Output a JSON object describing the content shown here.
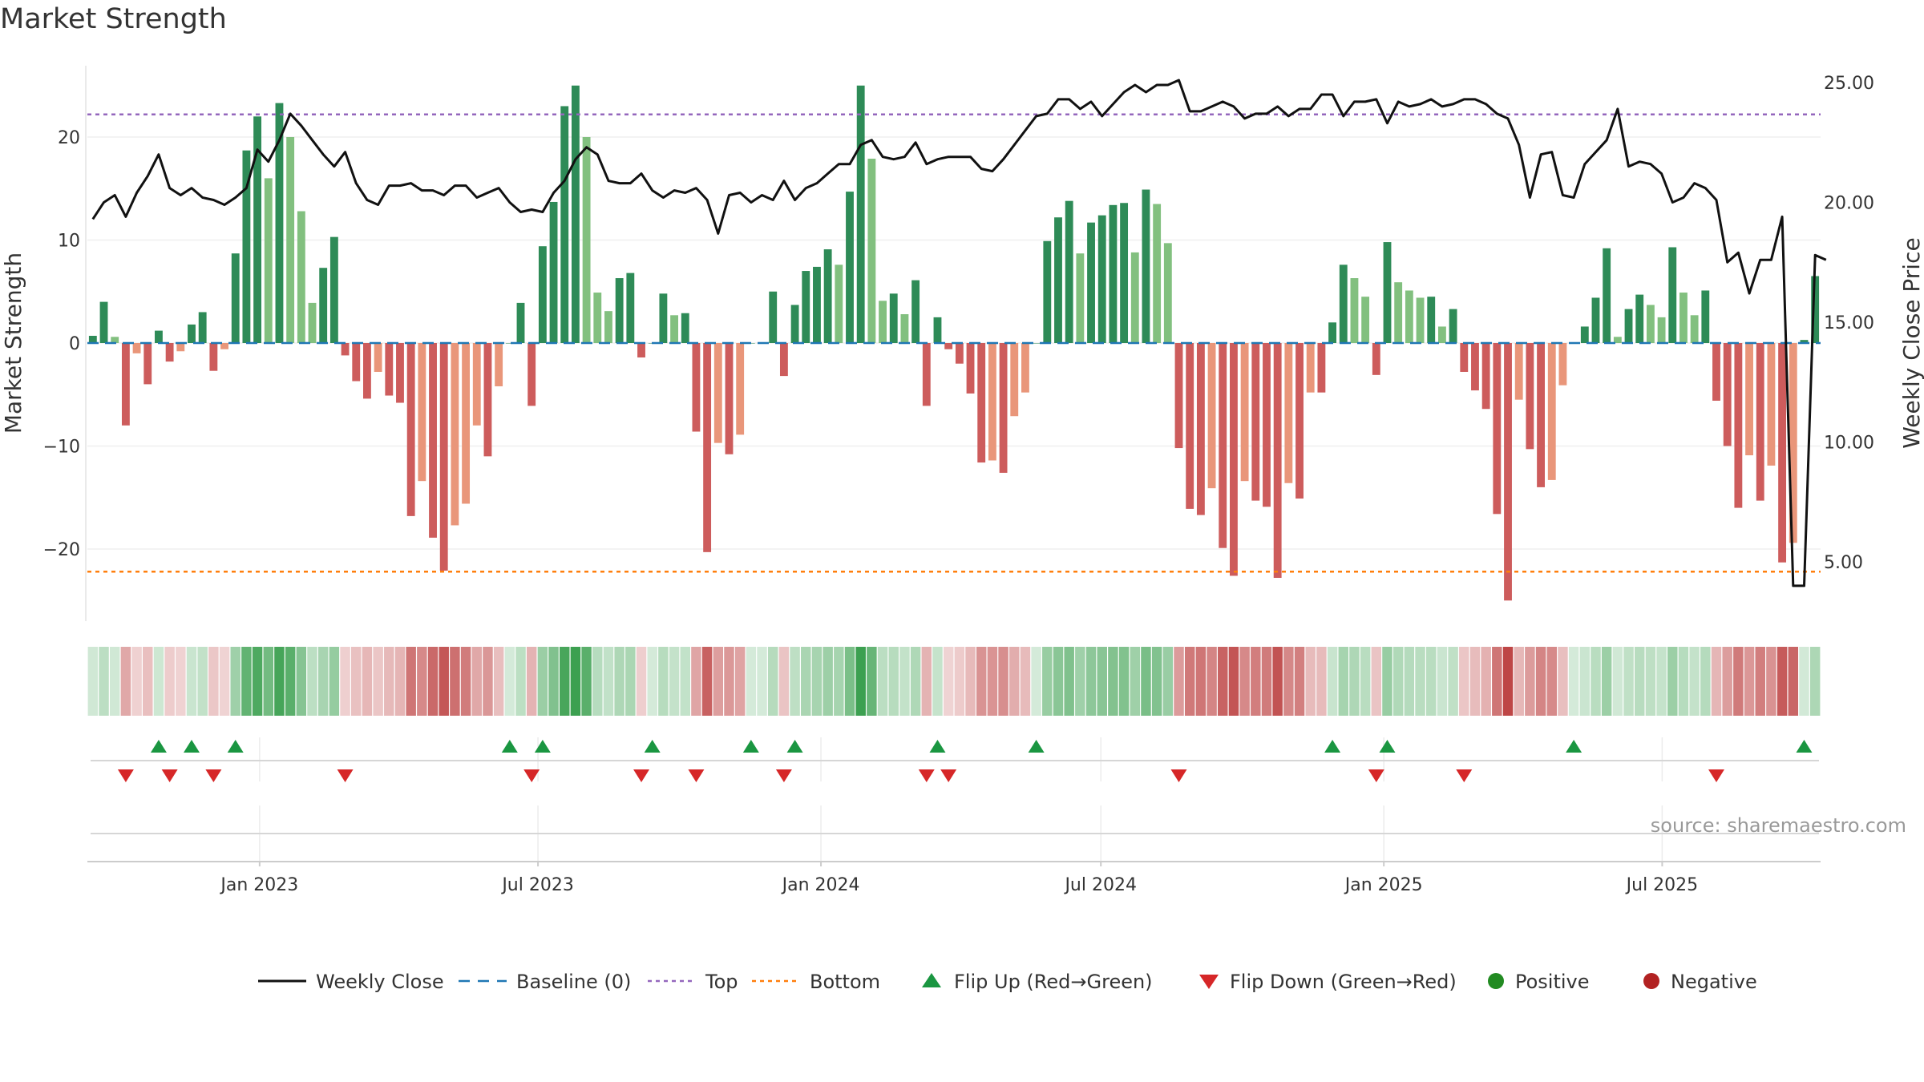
{
  "page": {
    "title": "Market Strength"
  },
  "colors": {
    "strong_pos": "#2e8b57",
    "weak_pos": "#82c07f",
    "strong_neg": "#cd5c5c",
    "weak_neg": "#e9967a",
    "close_line": "#111111",
    "baseline": "#1f77b4",
    "top_line": "#9467bd",
    "bottom_line": "#ff7f0e",
    "flip_up": "#1a9641",
    "flip_down": "#d62728",
    "positive_dot": "#228b22",
    "negative_dot": "#b22222"
  },
  "source": "source: sharemaestro.com",
  "legend": [
    {
      "key": "weekly_close",
      "label": "Weekly Close"
    },
    {
      "key": "baseline",
      "label": "Baseline (0)"
    },
    {
      "key": "top",
      "label": "Top"
    },
    {
      "key": "bottom",
      "label": "Bottom"
    },
    {
      "key": "flip_up",
      "label": "Flip Up (Red→Green)"
    },
    {
      "key": "flip_down",
      "label": "Flip Down (Green→Red)"
    },
    {
      "key": "positive",
      "label": "Positive"
    },
    {
      "key": "negative",
      "label": "Negative"
    }
  ],
  "chart_data": {
    "type": "bar",
    "title": "Market Strength",
    "ylabel": "Market Strength",
    "y2label": "Weekly Close Price",
    "ylim": [
      -27,
      27
    ],
    "y2lim": [
      2.5,
      26
    ],
    "yticks": [
      -20,
      -10,
      0,
      10,
      20
    ],
    "y2ticks": [
      "5.00",
      "10.00",
      "15.00",
      "20.00",
      "25.00"
    ],
    "x_start": "2022-09-11",
    "x_end": "2025-10-12",
    "xticks": [
      {
        "date": "2023-01-01",
        "label": "Jan 2023"
      },
      {
        "date": "2023-07-01",
        "label": "Jul 2023"
      },
      {
        "date": "2024-01-01",
        "label": "Jan 2024"
      },
      {
        "date": "2024-07-01",
        "label": "Jul 2024"
      },
      {
        "date": "2025-01-01",
        "label": "Jan 2025"
      },
      {
        "date": "2025-07-01",
        "label": "Jul 2025"
      }
    ],
    "top": 22.2,
    "bottom": -22.2,
    "baseline": 0,
    "strength": [
      0.7,
      4,
      0.6,
      -8,
      -1,
      -4,
      1.2,
      -1.8,
      -0.8,
      1.8,
      3,
      -2.7,
      -0.6,
      8.7,
      18.7,
      22,
      16,
      23.3,
      20,
      12.8,
      3.9,
      7.3,
      10.3,
      -1.2,
      -3.7,
      -5.4,
      -2.8,
      -5.1,
      -5.8,
      -16.8,
      -13.4,
      -18.9,
      -22.1,
      -17.7,
      -15.6,
      -8,
      -11,
      -4.2,
      0,
      3.9,
      -6.1,
      9.4,
      13.7,
      23,
      25,
      20,
      4.9,
      3.1,
      6.3,
      6.8,
      -1.4,
      0,
      4.8,
      2.7,
      2.9,
      -8.6,
      -20.3,
      -9.7,
      -10.8,
      -8.9,
      0,
      0,
      5,
      -3.2,
      3.7,
      7,
      7.4,
      9.1,
      7.6,
      14.7,
      25,
      17.9,
      4.1,
      4.8,
      2.8,
      6.1,
      -6.1,
      2.5,
      -0.6,
      -2,
      -4.9,
      -11.6,
      -11.4,
      -12.6,
      -7.1,
      -4.8,
      0,
      9.9,
      12.2,
      13.8,
      8.7,
      11.7,
      12.4,
      13.4,
      13.6,
      8.8,
      14.9,
      13.5,
      9.7,
      -10.2,
      -16.1,
      -16.7,
      -14.1,
      -19.9,
      -22.6,
      -13.4,
      -15.3,
      -15.9,
      -22.8,
      -13.6,
      -15.1,
      -4.8,
      -4.8,
      2,
      7.6,
      6.3,
      4.5,
      -3.1,
      9.8,
      5.9,
      5.1,
      4.4,
      4.5,
      1.6,
      3.3,
      -2.8,
      -4.6,
      -6.4,
      -16.6,
      -25,
      -5.5,
      -10.3,
      -14,
      -13.3,
      -4.1,
      0,
      1.6,
      4.4,
      9.2,
      0.6,
      3.3,
      4.7,
      3.7,
      2.5,
      9.3,
      4.9,
      2.7,
      5.1,
      -5.6,
      -10,
      -16,
      -10.9,
      -15.3,
      -11.9,
      -21.3,
      -19.4,
      0.3,
      6.5
    ],
    "close": [
      19.3,
      20.0,
      20.3,
      19.4,
      20.4,
      21.1,
      22.0,
      20.6,
      20.3,
      20.6,
      20.2,
      20.1,
      19.9,
      20.2,
      20.6,
      22.2,
      21.7,
      22.6,
      23.7,
      23.2,
      22.6,
      22.0,
      21.5,
      22.1,
      20.8,
      20.1,
      19.9,
      20.7,
      20.7,
      20.8,
      20.5,
      20.5,
      20.3,
      20.7,
      20.7,
      20.2,
      20.4,
      20.6,
      20.0,
      19.6,
      19.7,
      19.6,
      20.4,
      20.9,
      21.8,
      22.3,
      22.0,
      20.9,
      20.8,
      20.8,
      21.2,
      20.5,
      20.2,
      20.5,
      20.4,
      20.6,
      20.1,
      18.7,
      20.3,
      20.4,
      20.0,
      20.3,
      20.1,
      20.9,
      20.1,
      20.6,
      20.8,
      21.2,
      21.6,
      21.6,
      22.4,
      22.6,
      21.9,
      21.8,
      21.9,
      22.5,
      21.6,
      21.8,
      21.9,
      21.9,
      21.9,
      21.4,
      21.3,
      21.8,
      22.4,
      23.0,
      23.6,
      23.7,
      24.3,
      24.3,
      23.9,
      24.2,
      23.6,
      24.1,
      24.6,
      24.9,
      24.6,
      24.9,
      24.9,
      25.1,
      23.8,
      23.8,
      24.0,
      24.2,
      24.0,
      23.5,
      23.7,
      23.7,
      24.0,
      23.6,
      23.9,
      23.9,
      24.5,
      24.5,
      23.6,
      24.2,
      24.2,
      24.3,
      23.3,
      24.2,
      24.0,
      24.1,
      24.3,
      24.0,
      24.1,
      24.3,
      24.3,
      24.1,
      23.7,
      23.5,
      22.4,
      20.2,
      22.0,
      22.1,
      20.3,
      20.2,
      21.6,
      22.1,
      22.6,
      23.9,
      21.5,
      21.7,
      21.6,
      21.2,
      20.0,
      20.2,
      20.8,
      20.6,
      20.1,
      17.5,
      17.9,
      16.2,
      17.6,
      17.6,
      19.4,
      4.0,
      4.0,
      17.8,
      17.6
    ]
  }
}
